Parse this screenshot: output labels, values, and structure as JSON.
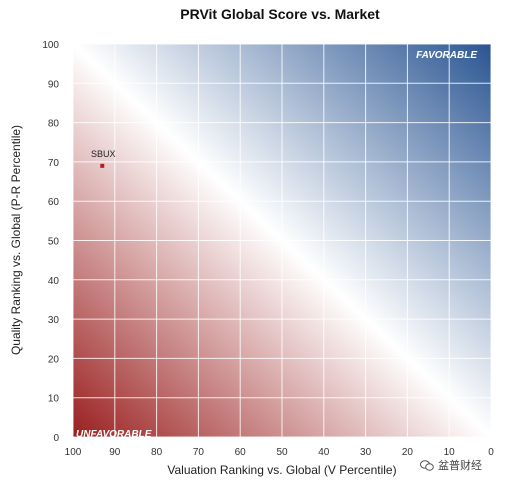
{
  "chart_data": {
    "type": "scatter",
    "title": "PRVit Global Score vs. Market",
    "xlabel": "Valuation Ranking vs. Global (V Percentile)",
    "ylabel": "Quality Ranking vs. Global (P-R Percentile)",
    "xlim": [
      100,
      0
    ],
    "ylim": [
      0,
      100
    ],
    "x_reversed": true,
    "x_ticks": [
      100,
      90,
      80,
      70,
      60,
      50,
      40,
      30,
      20,
      10,
      0
    ],
    "y_ticks": [
      0,
      10,
      20,
      30,
      40,
      50,
      60,
      70,
      80,
      90,
      100
    ],
    "grid": true,
    "background": "diagonal gradient from dark red (bottom-left) through white to dark blue (top-right)",
    "colors": {
      "favorable": "#2a5592",
      "unfavorable": "#9a1f1f",
      "middle": "#ffffff",
      "point": "#b01e1e"
    },
    "zone_labels": {
      "favorable": "FAVORABLE",
      "unfavorable": "UNFAVORABLE"
    },
    "points": [
      {
        "label": "SBUX",
        "x": 93,
        "y": 69
      }
    ]
  },
  "watermark": {
    "text": "盆普财经",
    "icon": "wechat-icon"
  }
}
